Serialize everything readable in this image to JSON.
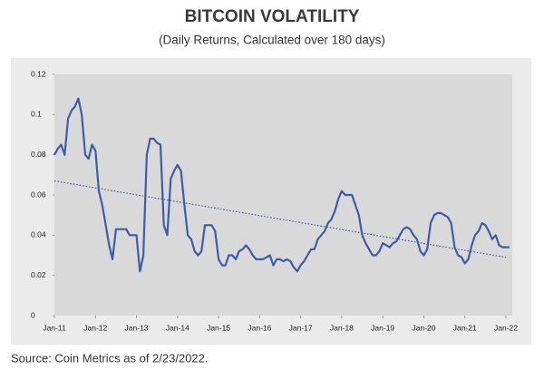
{
  "chart_data": {
    "type": "line",
    "title": "BITCOIN VOLATILITY",
    "subtitle": "(Daily Returns, Calculated over 180 days)",
    "source": "Source: Coin Metrics as of 2/23/2022.",
    "x": [
      "2011-01",
      "2011-02",
      "2011-03",
      "2011-04",
      "2011-05",
      "2011-06",
      "2011-07",
      "2011-08",
      "2011-09",
      "2011-10",
      "2011-11",
      "2011-12",
      "2012-01",
      "2012-02",
      "2012-03",
      "2012-04",
      "2012-05",
      "2012-06",
      "2012-07",
      "2012-08",
      "2012-09",
      "2012-10",
      "2012-11",
      "2012-12",
      "2013-01",
      "2013-02",
      "2013-03",
      "2013-04",
      "2013-05",
      "2013-06",
      "2013-07",
      "2013-08",
      "2013-09",
      "2013-10",
      "2013-11",
      "2013-12",
      "2014-01",
      "2014-02",
      "2014-03",
      "2014-04",
      "2014-05",
      "2014-06",
      "2014-07",
      "2014-08",
      "2014-09",
      "2014-10",
      "2014-11",
      "2014-12",
      "2015-01",
      "2015-02",
      "2015-03",
      "2015-04",
      "2015-05",
      "2015-06",
      "2015-07",
      "2015-08",
      "2015-09",
      "2015-10",
      "2015-11",
      "2015-12",
      "2016-01",
      "2016-02",
      "2016-03",
      "2016-04",
      "2016-05",
      "2016-06",
      "2016-07",
      "2016-08",
      "2016-09",
      "2016-10",
      "2016-11",
      "2016-12",
      "2017-01",
      "2017-02",
      "2017-03",
      "2017-04",
      "2017-05",
      "2017-06",
      "2017-07",
      "2017-08",
      "2017-09",
      "2017-10",
      "2017-11",
      "2017-12",
      "2018-01",
      "2018-02",
      "2018-03",
      "2018-04",
      "2018-05",
      "2018-06",
      "2018-07",
      "2018-08",
      "2018-09",
      "2018-10",
      "2018-11",
      "2018-12",
      "2019-01",
      "2019-02",
      "2019-03",
      "2019-04",
      "2019-05",
      "2019-06",
      "2019-07",
      "2019-08",
      "2019-09",
      "2019-10",
      "2019-11",
      "2019-12",
      "2020-01",
      "2020-02",
      "2020-03",
      "2020-04",
      "2020-05",
      "2020-06",
      "2020-07",
      "2020-08",
      "2020-09",
      "2020-10",
      "2020-11",
      "2020-12",
      "2021-01",
      "2021-02",
      "2021-03",
      "2021-04",
      "2021-05",
      "2021-06",
      "2021-07",
      "2021-08",
      "2021-09",
      "2021-10",
      "2021-11",
      "2021-12",
      "2022-01",
      "2022-02"
    ],
    "series": [
      {
        "color": "#3f5ca8",
        "values": [
          0.08,
          0.083,
          0.085,
          0.08,
          0.098,
          0.102,
          0.104,
          0.108,
          0.1,
          0.08,
          0.078,
          0.085,
          0.082,
          0.062,
          0.055,
          0.045,
          0.035,
          0.028,
          0.043,
          0.043,
          0.043,
          0.043,
          0.04,
          0.04,
          0.04,
          0.022,
          0.03,
          0.08,
          0.088,
          0.088,
          0.086,
          0.085,
          0.045,
          0.04,
          0.068,
          0.072,
          0.075,
          0.072,
          0.055,
          0.04,
          0.038,
          0.032,
          0.03,
          0.032,
          0.045,
          0.045,
          0.045,
          0.042,
          0.028,
          0.025,
          0.025,
          0.03,
          0.03,
          0.028,
          0.032,
          0.033,
          0.035,
          0.033,
          0.03,
          0.028,
          0.028,
          0.028,
          0.029,
          0.03,
          0.025,
          0.028,
          0.028,
          0.027,
          0.028,
          0.027,
          0.024,
          0.022,
          0.025,
          0.027,
          0.03,
          0.033,
          0.033,
          0.038,
          0.04,
          0.042,
          0.046,
          0.048,
          0.052,
          0.058,
          0.062,
          0.06,
          0.06,
          0.06,
          0.055,
          0.05,
          0.04,
          0.036,
          0.033,
          0.03,
          0.03,
          0.032,
          0.036,
          0.035,
          0.034,
          0.036,
          0.037,
          0.04,
          0.043,
          0.044,
          0.043,
          0.04,
          0.038,
          0.032,
          0.03,
          0.033,
          0.046,
          0.05,
          0.051,
          0.051,
          0.05,
          0.049,
          0.046,
          0.034,
          0.03,
          0.029,
          0.026,
          0.028,
          0.035,
          0.04,
          0.042,
          0.046,
          0.045,
          0.042,
          0.038,
          0.04,
          0.035,
          0.034,
          0.034,
          0.034
        ]
      }
    ],
    "trendline": {
      "x": [
        "2011-01",
        "2022-01"
      ],
      "values": [
        0.067,
        0.029
      ],
      "color": "#3f5ca8"
    },
    "xlim": [
      "2011-01",
      "2022-01"
    ],
    "xticks": [
      {
        "value": "2011-01",
        "label": "Jan-11"
      },
      {
        "value": "2012-01",
        "label": "Jan-12"
      },
      {
        "value": "2013-01",
        "label": "Jan-13"
      },
      {
        "value": "2014-01",
        "label": "Jan-14"
      },
      {
        "value": "2015-01",
        "label": "Jan-15"
      },
      {
        "value": "2016-01",
        "label": "Jan-16"
      },
      {
        "value": "2017-01",
        "label": "Jan-17"
      },
      {
        "value": "2018-01",
        "label": "Jan-18"
      },
      {
        "value": "2019-01",
        "label": "Jan-19"
      },
      {
        "value": "2020-01",
        "label": "Jan-20"
      },
      {
        "value": "2021-01",
        "label": "Jan-21"
      },
      {
        "value": "2022-01",
        "label": "Jan-22"
      }
    ],
    "ylim": [
      0,
      0.12
    ],
    "yticks": [
      0,
      0.02,
      0.04,
      0.06,
      0.08,
      0.1,
      0.12
    ]
  }
}
